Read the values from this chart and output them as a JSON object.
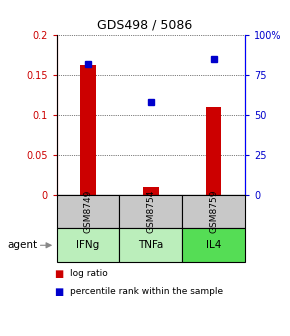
{
  "title": "GDS498 / 5086",
  "samples": [
    "GSM8749",
    "GSM8754",
    "GSM8759"
  ],
  "agents": [
    "IFNg",
    "TNFa",
    "IL4"
  ],
  "log_ratio": [
    0.163,
    0.01,
    0.11
  ],
  "percentile_rank": [
    82,
    58,
    85
  ],
  "bar_color": "#cc0000",
  "dot_color": "#0000cc",
  "ylim_left": [
    0,
    0.2
  ],
  "ylim_right": [
    0,
    100
  ],
  "yticks_left": [
    0,
    0.05,
    0.1,
    0.15,
    0.2
  ],
  "yticks_right": [
    0,
    25,
    50,
    75,
    100
  ],
  "ytick_labels_left": [
    "0",
    "0.05",
    "0.1",
    "0.15",
    "0.2"
  ],
  "ytick_labels_right": [
    "0",
    "25",
    "50",
    "75",
    "100%"
  ],
  "bg_color": "#ffffff",
  "gray_box_color": "#c8c8c8",
  "green_colors": [
    "#bbeebb",
    "#bbeebb",
    "#55dd55"
  ],
  "agent_label": "agent",
  "legend_red": "log ratio",
  "legend_blue": "percentile rank within the sample"
}
